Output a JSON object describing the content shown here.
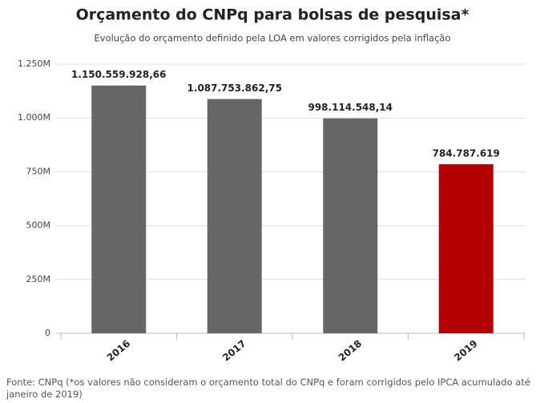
{
  "chart_data": {
    "type": "bar",
    "title": "Orçamento do CNPq para bolsas de pesquisa*",
    "subtitle": "Evolução do orçamento definido pela LOA em valores corrigidos pela inflação",
    "categories": [
      "2016",
      "2017",
      "2018",
      "2019"
    ],
    "values": [
      1150559928.66,
      1087753862.75,
      998114548.14,
      784787619
    ],
    "value_labels": [
      "1.150.559.928,66",
      "1.087.753.862,75",
      "998.114.548,14",
      "784.787.619"
    ],
    "colors": [
      "#666666",
      "#666666",
      "#666666",
      "#b30000"
    ],
    "ylim": [
      0,
      1250000000
    ],
    "yticks": [
      0,
      {
        "value": 250000000,
        "label": "250M"
      },
      {
        "value": 500000000,
        "label": "500M"
      },
      {
        "value": 750000000,
        "label": "750M"
      },
      {
        "value": 1000000000,
        "label": "1.000M"
      },
      {
        "value": 1250000000,
        "label": "1.250M"
      }
    ],
    "grid": true,
    "note": "Fonte: CNPq (*os valores não consideram o orçamento total do CNPq e foram corrigidos pelo IPCA acumulado até janeiro de 2019)"
  }
}
